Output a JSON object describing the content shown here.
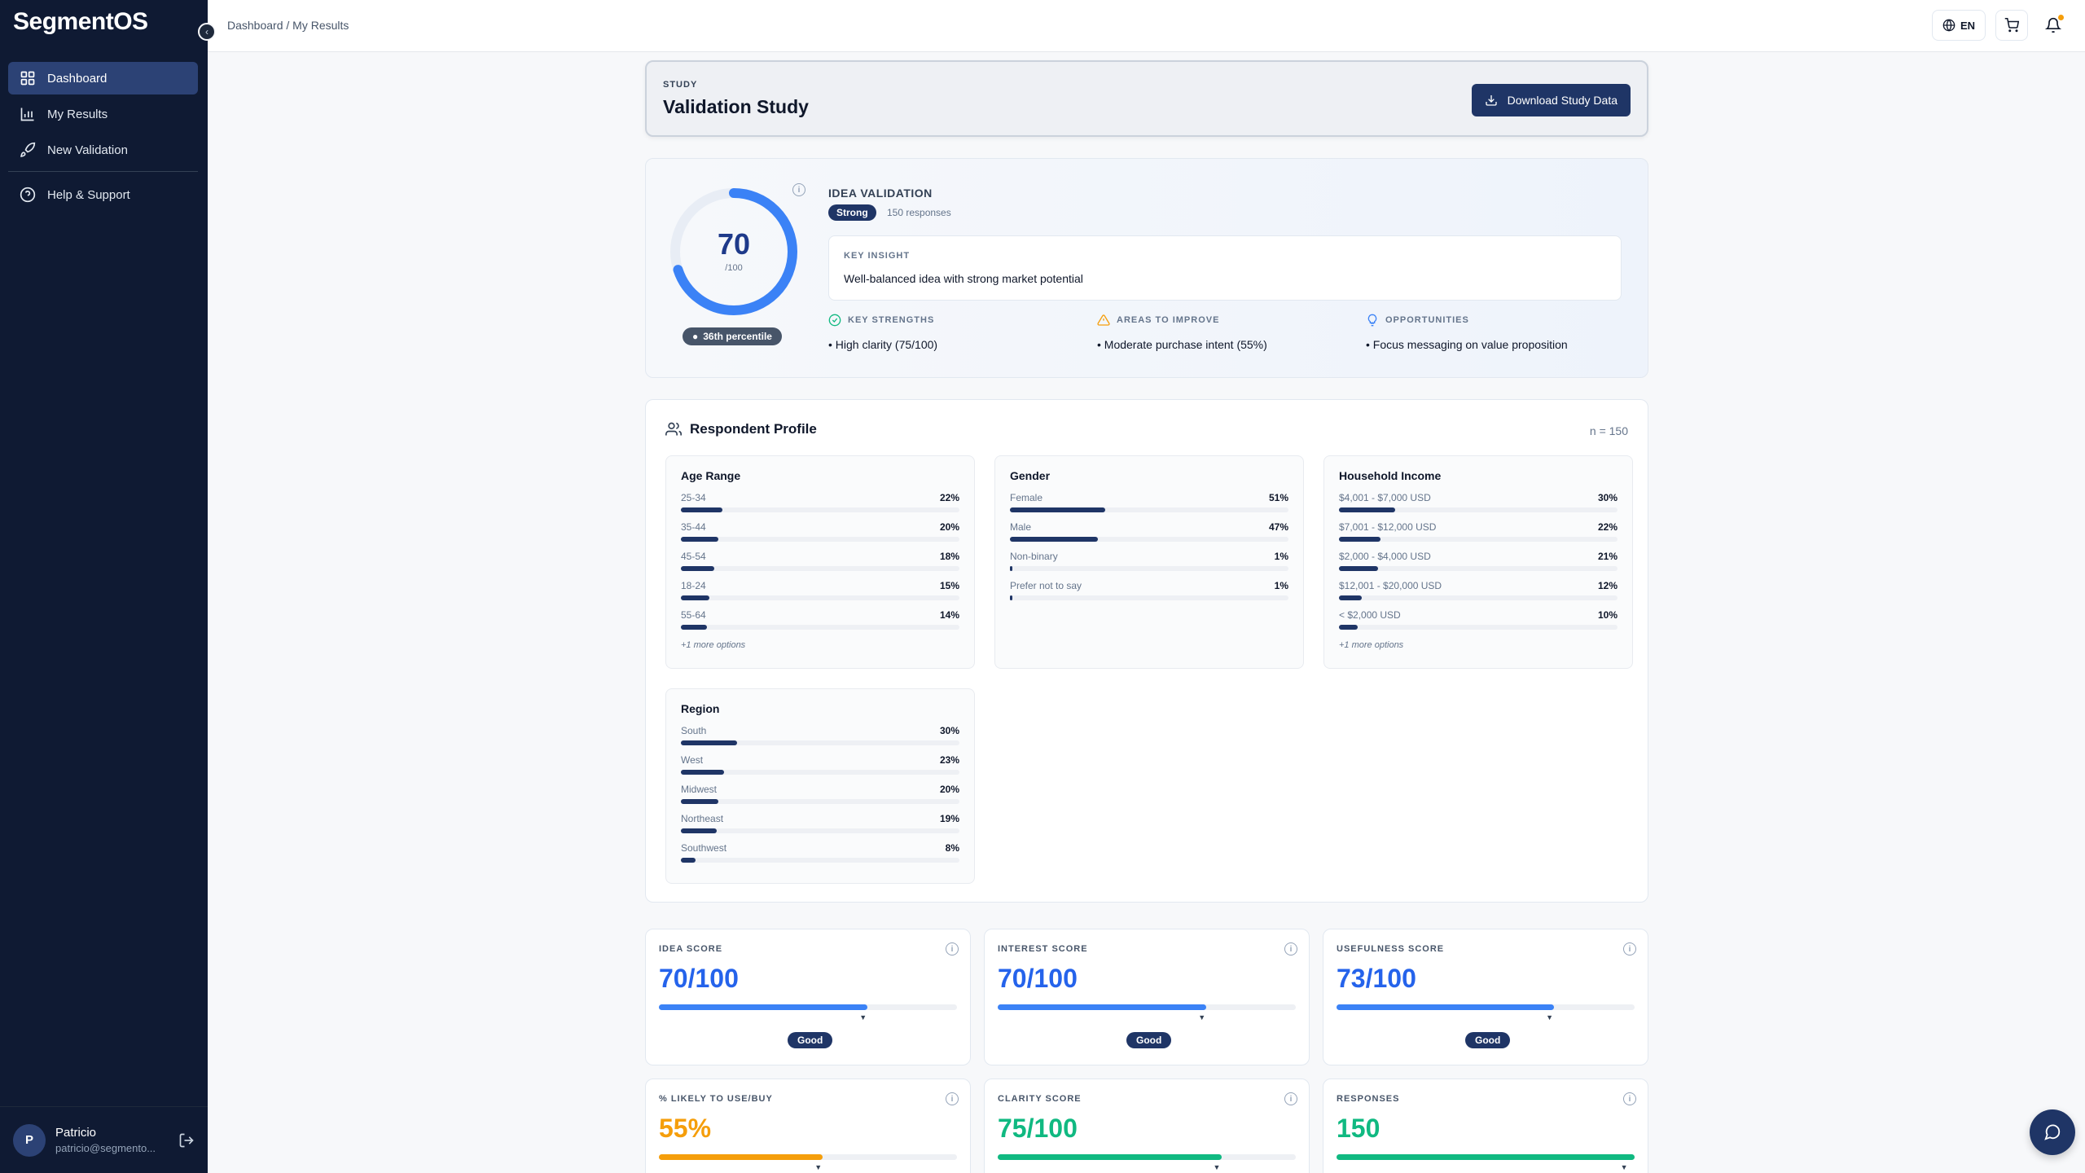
{
  "app": {
    "logo": "SegmentOS"
  },
  "sidebar": {
    "items": [
      {
        "label": "Dashboard"
      },
      {
        "label": "My Results"
      },
      {
        "label": "New Validation"
      },
      {
        "label": "Help & Support"
      }
    ],
    "user": {
      "initial": "P",
      "name": "Patricio",
      "email": "patricio@segmento..."
    }
  },
  "topbar": {
    "breadcrumb": "Dashboard / My Results",
    "lang": "EN"
  },
  "study": {
    "label": "STUDY",
    "title": "Validation Study",
    "download_label": "Download Study Data"
  },
  "idea": {
    "score": "70",
    "score_max": "/100",
    "score_fraction": 0.7,
    "percentile": "36th percentile",
    "title": "IDEA VALIDATION",
    "badge": "Strong",
    "responses": "150 responses",
    "insight_label": "KEY INSIGHT",
    "insight_text": "Well-balanced idea with strong market potential",
    "strengths_label": "KEY STRENGTHS",
    "strengths_text": "• High clarity (75/100)",
    "improve_label": "AREAS TO IMPROVE",
    "improve_text": "• Moderate purchase intent (55%)",
    "opps_label": "OPPORTUNITIES",
    "opps_text": "• Focus messaging on value proposition",
    "colors": {
      "strength": "#10b981",
      "improve": "#f59e0b",
      "opps": "#3b82f6"
    }
  },
  "profile": {
    "title": "Respondent Profile",
    "n": "n = 150",
    "groups": [
      {
        "title": "Age Range",
        "more": "+1 more options",
        "rows": [
          {
            "label": "25-34",
            "pct": "22%",
            "value": 22
          },
          {
            "label": "35-44",
            "pct": "20%",
            "value": 20
          },
          {
            "label": "45-54",
            "pct": "18%",
            "value": 18
          },
          {
            "label": "18-24",
            "pct": "15%",
            "value": 15
          },
          {
            "label": "55-64",
            "pct": "14%",
            "value": 14
          }
        ]
      },
      {
        "title": "Gender",
        "more": "",
        "rows": [
          {
            "label": "Female",
            "pct": "51%",
            "value": 51
          },
          {
            "label": "Male",
            "pct": "47%",
            "value": 47
          },
          {
            "label": "Non-binary",
            "pct": "1%",
            "value": 1
          },
          {
            "label": "Prefer not to say",
            "pct": "1%",
            "value": 1
          }
        ]
      },
      {
        "title": "Household Income",
        "more": "+1 more options",
        "rows": [
          {
            "label": "$4,001 - $7,000 USD",
            "pct": "30%",
            "value": 30
          },
          {
            "label": "$7,001 - $12,000 USD",
            "pct": "22%",
            "value": 22
          },
          {
            "label": "$2,000 - $4,000 USD",
            "pct": "21%",
            "value": 21
          },
          {
            "label": "$12,001 - $20,000 USD",
            "pct": "12%",
            "value": 12
          },
          {
            "label": "< $2,000 USD",
            "pct": "10%",
            "value": 10
          }
        ]
      },
      {
        "title": "Region",
        "more": "",
        "rows": [
          {
            "label": "South",
            "pct": "30%",
            "value": 30
          },
          {
            "label": "West",
            "pct": "23%",
            "value": 23
          },
          {
            "label": "Midwest",
            "pct": "20%",
            "value": 20
          },
          {
            "label": "Northeast",
            "pct": "19%",
            "value": 19
          },
          {
            "label": "Southwest",
            "pct": "8%",
            "value": 8
          }
        ]
      }
    ]
  },
  "metrics": [
    {
      "label": "IDEA SCORE",
      "value": "70/100",
      "fraction": 0.7,
      "color": "#3b82f6",
      "badge": "Good"
    },
    {
      "label": "INTEREST SCORE",
      "value": "70/100",
      "fraction": 0.7,
      "color": "#3b82f6",
      "badge": "Good"
    },
    {
      "label": "USEFULNESS SCORE",
      "value": "73/100",
      "fraction": 0.73,
      "color": "#3b82f6",
      "badge": "Good"
    },
    {
      "label": "% LIKELY TO USE/BUY",
      "value": "55%",
      "fraction": 0.55,
      "color": "#f59e0b",
      "badge": ""
    },
    {
      "label": "CLARITY SCORE",
      "value": "75/100",
      "fraction": 0.75,
      "color": "#10b981",
      "badge": ""
    },
    {
      "label": "RESPONSES",
      "value": "150",
      "fraction": 1.0,
      "color": "#10b981",
      "badge": ""
    }
  ]
}
